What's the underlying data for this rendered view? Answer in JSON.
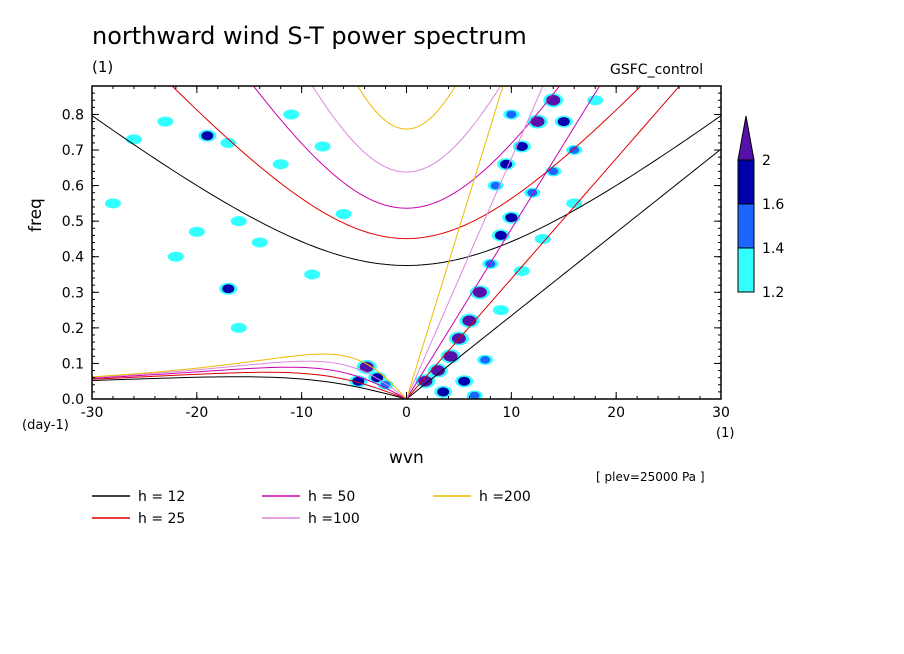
{
  "header": {
    "title": "northward wind S-T power spectrum",
    "unit_top": "(1)",
    "model": "GSFC_control",
    "plev": "[ plev=25000 Pa ]",
    "x_unit": "(1)",
    "y_unit": "(day-1)"
  },
  "chart_data": {
    "type": "heatmap",
    "title": "northward wind S-T power spectrum",
    "xlabel": "wvn",
    "ylabel": "freq",
    "xlim": [
      -30,
      30
    ],
    "ylim": [
      0,
      0.88
    ],
    "x_ticks": [
      -30,
      -20,
      -10,
      0,
      10,
      20,
      30
    ],
    "y_ticks": [
      0.0,
      0.1,
      0.2,
      0.3,
      0.4,
      0.5,
      0.6,
      0.7,
      0.8
    ],
    "x_tick_labels": [
      "-30",
      "-20",
      "-10",
      "0",
      "10",
      "20",
      "30"
    ],
    "y_tick_labels": [
      "0.0",
      "0.1",
      "0.2",
      "0.3",
      "0.4",
      "0.5",
      "0.6",
      "0.7",
      "0.8"
    ],
    "colorbar": {
      "levels": [
        1.2,
        1.4,
        1.6,
        2
      ],
      "labels": [
        "1.2",
        "1.4",
        "1.6",
        "2"
      ],
      "colors": [
        "#33ffff",
        "#1a66ff",
        "#0000aa",
        "#5511aa"
      ]
    },
    "dispersion_curves": [
      {
        "label": "h = 12",
        "h": 12,
        "color": "#000000"
      },
      {
        "label": "h = 25",
        "h": 25,
        "color": "#dd0000"
      },
      {
        "label": "h = 50",
        "h": 50,
        "color": "#cc00aa"
      },
      {
        "label": "h =100",
        "h": 100,
        "color": "#dd88dd"
      },
      {
        "label": "h =200",
        "h": 200,
        "color": "#eebb00"
      }
    ],
    "spectral_blobs": [
      {
        "x": -26,
        "y": 0.73,
        "level": 1.2
      },
      {
        "x": -23,
        "y": 0.78,
        "level": 1.2
      },
      {
        "x": -19,
        "y": 0.74,
        "level": 1.6
      },
      {
        "x": -17,
        "y": 0.72,
        "level": 1.2
      },
      {
        "x": -20,
        "y": 0.47,
        "level": 1.2
      },
      {
        "x": -16,
        "y": 0.5,
        "level": 1.2
      },
      {
        "x": -12,
        "y": 0.66,
        "level": 1.2
      },
      {
        "x": -11,
        "y": 0.8,
        "level": 1.2
      },
      {
        "x": -8,
        "y": 0.71,
        "level": 1.2
      },
      {
        "x": -14,
        "y": 0.44,
        "level": 1.2
      },
      {
        "x": -17,
        "y": 0.31,
        "level": 1.6
      },
      {
        "x": -16,
        "y": 0.2,
        "level": 1.2
      },
      {
        "x": -9,
        "y": 0.35,
        "level": 1.2
      },
      {
        "x": -6,
        "y": 0.52,
        "level": 1.2
      },
      {
        "x": -22,
        "y": 0.4,
        "level": 1.2
      },
      {
        "x": -28,
        "y": 0.55,
        "level": 1.2
      },
      {
        "x": -3.8,
        "y": 0.09,
        "level": 2
      },
      {
        "x": -2.8,
        "y": 0.06,
        "level": 1.6
      },
      {
        "x": -4.6,
        "y": 0.05,
        "level": 1.6
      },
      {
        "x": -2,
        "y": 0.04,
        "level": 1.4
      },
      {
        "x": 1.8,
        "y": 0.05,
        "level": 2
      },
      {
        "x": 3,
        "y": 0.08,
        "level": 2
      },
      {
        "x": 4.2,
        "y": 0.12,
        "level": 2
      },
      {
        "x": 5,
        "y": 0.17,
        "level": 2
      },
      {
        "x": 6,
        "y": 0.22,
        "level": 2
      },
      {
        "x": 7,
        "y": 0.3,
        "level": 2
      },
      {
        "x": 3.5,
        "y": 0.02,
        "level": 1.6
      },
      {
        "x": 5.5,
        "y": 0.05,
        "level": 1.6
      },
      {
        "x": 7.5,
        "y": 0.11,
        "level": 1.4
      },
      {
        "x": 8,
        "y": 0.38,
        "level": 1.4
      },
      {
        "x": 9,
        "y": 0.46,
        "level": 1.6
      },
      {
        "x": 10,
        "y": 0.51,
        "level": 1.6
      },
      {
        "x": 8.5,
        "y": 0.6,
        "level": 1.4
      },
      {
        "x": 9.5,
        "y": 0.66,
        "level": 1.6
      },
      {
        "x": 11,
        "y": 0.71,
        "level": 1.6
      },
      {
        "x": 12.5,
        "y": 0.78,
        "level": 2
      },
      {
        "x": 14,
        "y": 0.84,
        "level": 2
      },
      {
        "x": 10,
        "y": 0.8,
        "level": 1.4
      },
      {
        "x": 12,
        "y": 0.58,
        "level": 1.4
      },
      {
        "x": 14,
        "y": 0.64,
        "level": 1.4
      },
      {
        "x": 16,
        "y": 0.7,
        "level": 1.4
      },
      {
        "x": 15,
        "y": 0.78,
        "level": 1.6
      },
      {
        "x": 18,
        "y": 0.84,
        "level": 1.2
      },
      {
        "x": 11,
        "y": 0.36,
        "level": 1.2
      },
      {
        "x": 13,
        "y": 0.45,
        "level": 1.2
      },
      {
        "x": 9,
        "y": 0.25,
        "level": 1.2
      },
      {
        "x": 16,
        "y": 0.55,
        "level": 1.2
      },
      {
        "x": 6.5,
        "y": 0.01,
        "level": 1.4
      }
    ]
  },
  "legend": [
    {
      "label": "h = 12",
      "color": "#000000"
    },
    {
      "label": "h = 25",
      "color": "#dd0000"
    },
    {
      "label": "h = 50",
      "color": "#cc00aa"
    },
    {
      "label": "h =100",
      "color": "#dd88dd"
    },
    {
      "label": "h =200",
      "color": "#eebb00"
    }
  ]
}
